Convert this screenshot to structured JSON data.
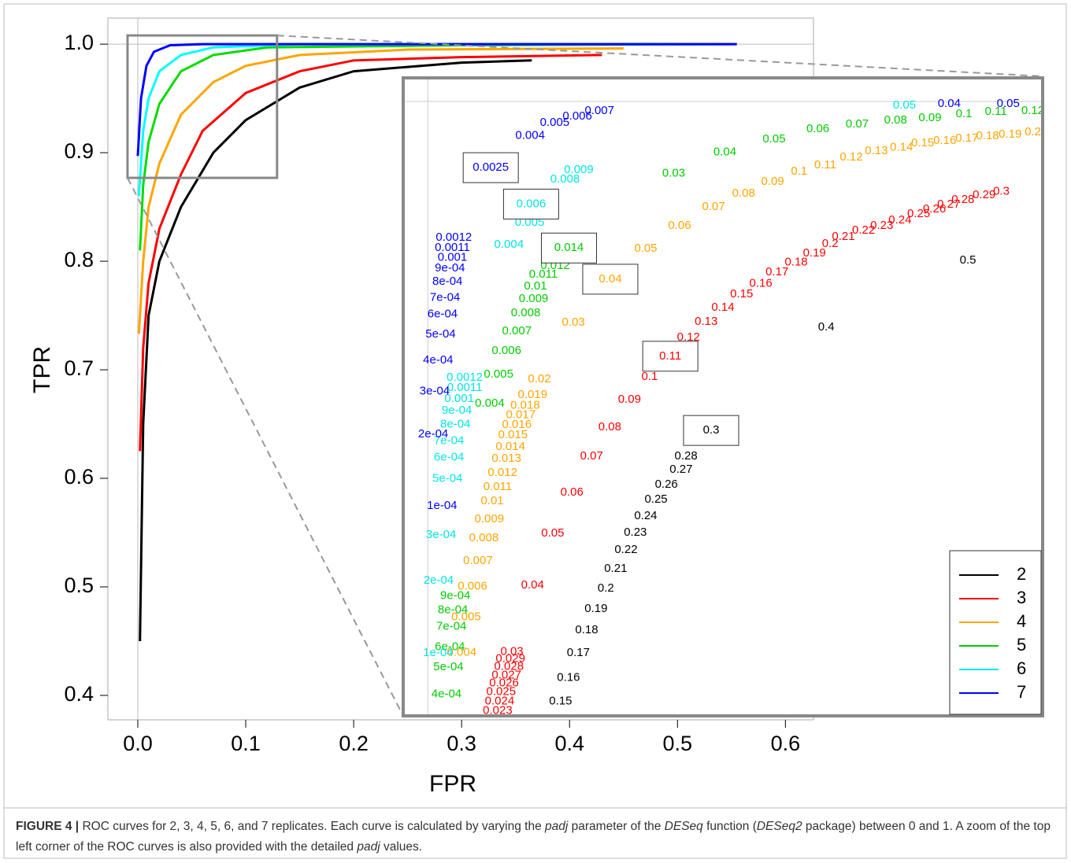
{
  "chart_data": [
    {
      "type": "line",
      "xlabel": "FPR",
      "ylabel": "TPR",
      "xlim": [
        -0.0277,
        0.626
      ],
      "ylim": [
        0.3775,
        1.024
      ],
      "xticks": [
        {
          "value": 0,
          "label": "0.0"
        },
        0.1,
        0.2,
        0.3,
        0.4,
        0.5,
        0.6
      ],
      "yticks": [
        0.4,
        0.5,
        0.6,
        0.7,
        0.8,
        0.9,
        {
          "value": 1,
          "label": "1.0"
        }
      ],
      "reference_lines": {
        "x": 0,
        "y": 1
      },
      "zoom": {
        "xlim": [
          -0.0095,
          0.129
        ],
        "ylim": [
          0.8768,
          1.008
        ]
      },
      "series": [
        {
          "name": "2",
          "color": "#000000",
          "x": [
            0.002,
            0.005,
            0.01,
            0.02,
            0.04,
            0.07,
            0.1,
            0.15,
            0.2,
            0.3,
            0.365
          ],
          "y": [
            0.45,
            0.65,
            0.75,
            0.8,
            0.85,
            0.9,
            0.93,
            0.96,
            0.975,
            0.983,
            0.985
          ]
        },
        {
          "name": "3",
          "color": "#ff0000",
          "x": [
            0.002,
            0.005,
            0.01,
            0.02,
            0.04,
            0.06,
            0.1,
            0.15,
            0.2,
            0.3,
            0.43
          ],
          "y": [
            0.625,
            0.72,
            0.78,
            0.83,
            0.88,
            0.92,
            0.955,
            0.975,
            0.985,
            0.988,
            0.99
          ]
        },
        {
          "name": "4",
          "color": "#ffa500",
          "x": [
            0.001,
            0.005,
            0.01,
            0.02,
            0.04,
            0.07,
            0.1,
            0.15,
            0.25,
            0.45
          ],
          "y": [
            0.733,
            0.8,
            0.85,
            0.89,
            0.935,
            0.965,
            0.98,
            0.99,
            0.995,
            0.996
          ]
        },
        {
          "name": "5",
          "color": "#00dd00",
          "x": [
            0.002,
            0.005,
            0.01,
            0.02,
            0.04,
            0.07,
            0.12,
            0.3,
            0.55
          ],
          "y": [
            0.81,
            0.87,
            0.91,
            0.945,
            0.975,
            0.99,
            0.997,
            0.999,
            1.0
          ]
        },
        {
          "name": "6",
          "color": "#00ffff",
          "x": [
            0.001,
            0.005,
            0.01,
            0.02,
            0.04,
            0.07,
            0.15,
            0.5
          ],
          "y": [
            0.86,
            0.92,
            0.95,
            0.975,
            0.99,
            0.997,
            1.0,
            1.0
          ]
        },
        {
          "name": "7",
          "color": "#0000ff",
          "x": [
            0.0,
            0.003,
            0.008,
            0.015,
            0.03,
            0.06,
            0.555
          ],
          "y": [
            0.897,
            0.95,
            0.98,
            0.993,
            0.999,
            1.0,
            1.0
          ]
        }
      ]
    },
    {
      "type": "text-scatter",
      "xlim": [
        -0.005,
        0.125
      ],
      "ylim": [
        0.87,
        1.005
      ],
      "reference_lines": {
        "x": 0,
        "y": 1
      },
      "legend": "bottom-right",
      "series": [
        {
          "name": "2",
          "color": "#000000",
          "labels": [
            "0.5",
            "0.4",
            "0.3",
            "0.28",
            "0.27",
            "0.26",
            "0.25",
            "0.24",
            "0.23",
            "0.22",
            "0.21",
            "0.2",
            "0.19",
            "0.18",
            "0.17",
            "0.16",
            "0.15"
          ],
          "x": [
            0.1098,
            0.081,
            0.0576,
            0.0525,
            0.0515,
            0.0485,
            0.0464,
            0.0443,
            0.0422,
            0.0403,
            0.0382,
            0.0362,
            0.0342,
            0.0323,
            0.0306,
            0.0286,
            0.027
          ],
          "y": [
            0.9664,
            0.9522,
            0.9304,
            0.9249,
            0.9221,
            0.9189,
            0.9158,
            0.9123,
            0.9088,
            0.9051,
            0.9011,
            0.897,
            0.8926,
            0.8881,
            0.8833,
            0.8781,
            0.8731
          ],
          "boxed": [
            2
          ]
        },
        {
          "name": "3",
          "color": "#ff0000",
          "labels": [
            "0.3",
            "0.29",
            "0.28",
            "0.27",
            "0.26",
            "0.25",
            "0.24",
            "0.23",
            "0.22",
            "0.21",
            "0.2",
            "0.19",
            "0.18",
            "0.17",
            "0.16",
            "0.15",
            "0.14",
            "0.13",
            "0.12",
            "0.11",
            "0.1",
            "0.09",
            "0.08",
            "0.07",
            "0.06",
            "0.05",
            "0.04",
            "0.03",
            "0.029",
            "0.028",
            "0.027",
            "0.026",
            "0.025",
            "0.024",
            "0.023"
          ],
          "x": [
            0.1166,
            0.1131,
            0.1088,
            0.1059,
            0.103,
            0.0998,
            0.096,
            0.0923,
            0.0886,
            0.0845,
            0.0818,
            0.0786,
            0.0749,
            0.071,
            0.0677,
            0.0638,
            0.06,
            0.0566,
            0.053,
            0.0493,
            0.0451,
            0.041,
            0.037,
            0.0333,
            0.0293,
            0.0254,
            0.0213,
            0.0171,
            0.0168,
            0.0165,
            0.016,
            0.0155,
            0.0149,
            0.0146,
            0.0142
          ],
          "y": [
            0.9809,
            0.9802,
            0.9792,
            0.9782,
            0.9772,
            0.9762,
            0.9749,
            0.9737,
            0.9727,
            0.9714,
            0.9699,
            0.9679,
            0.966,
            0.9639,
            0.9615,
            0.9592,
            0.9564,
            0.9534,
            0.9501,
            0.9461,
            0.9417,
            0.9369,
            0.9311,
            0.9249,
            0.9173,
            0.9086,
            0.8976,
            0.8836,
            0.8821,
            0.8804,
            0.8786,
            0.8769,
            0.8751,
            0.8731,
            0.8711
          ],
          "boxed": [
            19
          ]
        },
        {
          "name": "4",
          "color": "#ffa500",
          "labels": [
            "0.2",
            "0.19",
            "0.18",
            "0.17",
            "0.16",
            "0.15",
            "0.14",
            "0.13",
            "0.12",
            "0.11",
            "0.1",
            "0.09",
            "0.08",
            "0.07",
            "0.06",
            "0.05",
            "0.04",
            "0.03",
            "0.02",
            "0.019",
            "0.018",
            "0.017",
            "0.016",
            "0.015",
            "0.014",
            "0.013",
            "0.012",
            "0.011",
            "0.01",
            "0.009",
            "0.008",
            "0.007",
            "0.006",
            "0.005",
            "0.004"
          ],
          "x": [
            0.123,
            0.1184,
            0.1138,
            0.1096,
            0.1051,
            0.1006,
            0.0963,
            0.0912,
            0.0861,
            0.0808,
            0.0755,
            0.0701,
            0.0642,
            0.0581,
            0.0512,
            0.0443,
            0.0371,
            0.0296,
            0.0227,
            0.0213,
            0.0198,
            0.0189,
            0.0181,
            0.0173,
            0.0168,
            0.016,
            0.0152,
            0.0142,
            0.0131,
            0.0125,
            0.0114,
            0.0102,
            0.0091,
            0.0078,
            0.0069
          ],
          "y": [
            0.9935,
            0.993,
            0.9927,
            0.9922,
            0.9917,
            0.9912,
            0.9903,
            0.9895,
            0.9882,
            0.9865,
            0.9852,
            0.983,
            0.9805,
            0.9777,
            0.9737,
            0.9689,
            0.9624,
            0.9532,
            0.9412,
            0.9379,
            0.9357,
            0.9337,
            0.9316,
            0.9294,
            0.9269,
            0.9244,
            0.9214,
            0.9184,
            0.9154,
            0.9116,
            0.9076,
            0.9028,
            0.8974,
            0.8909,
            0.8834
          ],
          "boxed": [
            16
          ]
        },
        {
          "name": "5",
          "color": "#00cc00",
          "labels": [
            "0.12",
            "0.11",
            "0.1",
            "0.09",
            "0.08",
            "0.07",
            "0.06",
            "0.05",
            "0.04",
            "0.03",
            "0.014",
            "0.012",
            "0.011",
            "0.01",
            "0.009",
            "0.008",
            "0.007",
            "0.006",
            "0.005",
            "0.004",
            "9e-04",
            "8e-04",
            "7e-04",
            "6e-04",
            "5e-04",
            "4e-04"
          ],
          "x": [
            0.123,
            0.1155,
            0.109,
            0.1021,
            0.0951,
            0.0873,
            0.0793,
            0.0704,
            0.0604,
            0.05,
            0.0287,
            0.0259,
            0.0235,
            0.0219,
            0.0215,
            0.0199,
            0.0181,
            0.016,
            0.0144,
            0.0126,
            0.0056,
            0.0051,
            0.0048,
            0.0045,
            0.0042,
            0.0038
          ],
          "y": [
            0.998,
            0.9978,
            0.9973,
            0.9965,
            0.996,
            0.9952,
            0.9942,
            0.992,
            0.9893,
            0.9848,
            0.969,
            0.9652,
            0.9634,
            0.9609,
            0.9582,
            0.9552,
            0.9514,
            0.9472,
            0.9422,
            0.9361,
            0.8954,
            0.8924,
            0.8889,
            0.8846,
            0.8803,
            0.8746
          ],
          "boxed": [
            10
          ]
        },
        {
          "name": "6",
          "color": "#00e5e5",
          "labels": [
            "0.05",
            "0.009",
            "0.008",
            "0.006",
            "0.005",
            "0.004",
            "0.0012",
            "0.0011",
            "0.001",
            "9e-04",
            "8e-04",
            "7e-04",
            "6e-04",
            "5e-04",
            "3e-04",
            "2e-04",
            "1e-04"
          ],
          "x": [
            0.0969,
            0.0307,
            0.0279,
            0.021,
            0.0207,
            0.0165,
            0.0075,
            0.0075,
            0.0064,
            0.0059,
            0.0056,
            0.0043,
            0.0043,
            0.004,
            0.0027,
            0.0022,
            0.0021
          ],
          "y": [
            0.9992,
            0.9855,
            0.9835,
            0.9783,
            0.9744,
            0.9697,
            0.9416,
            0.9394,
            0.9371,
            0.9346,
            0.9317,
            0.9282,
            0.9247,
            0.9202,
            0.9083,
            0.8986,
            0.8833
          ],
          "boxed": [
            3
          ]
        },
        {
          "name": "7",
          "color": "#0000ff",
          "labels": [
            "0.05",
            "0.04",
            "0.007",
            "0.006",
            "0.005",
            "0.004",
            "0.0025",
            "0.0012",
            "0.0011",
            "0.001",
            "9e-04",
            "8e-04",
            "7e-04",
            "6e-04",
            "5e-04",
            "4e-04",
            "3e-04",
            "2e-04",
            "1e-04"
          ],
          "x": [
            0.118,
            0.106,
            0.0349,
            0.0304,
            0.0258,
            0.0208,
            0.0128,
            0.0053,
            0.005,
            0.005,
            0.0045,
            0.004,
            0.0035,
            0.003,
            0.0026,
            0.0021,
            0.0014,
            0.0011,
            0.0029
          ],
          "y": [
            0.9995,
            0.9995,
            0.998,
            0.9968,
            0.9955,
            0.9928,
            0.986,
            0.9712,
            0.969,
            0.967,
            0.9647,
            0.9619,
            0.9585,
            0.955,
            0.9507,
            0.9452,
            0.9387,
            0.9296,
            0.9144
          ],
          "boxed": [
            6
          ]
        }
      ]
    }
  ],
  "caption": {
    "label": "FIGURE 4 |",
    "parts": [
      {
        "text": " ROC curves for 2, 3, 4, 5, 6, and 7 replicates. Each curve is calculated by varying the ",
        "italic": false
      },
      {
        "text": "padj",
        "italic": true
      },
      {
        "text": " parameter of the ",
        "italic": false
      },
      {
        "text": "DESeq",
        "italic": true
      },
      {
        "text": " function (",
        "italic": false
      },
      {
        "text": "DESeq2",
        "italic": true
      },
      {
        "text": " package) between 0 and 1. A zoom of the top left corner of the ROC curves is also provided with the detailed ",
        "italic": false
      },
      {
        "text": "padj",
        "italic": true
      },
      {
        "text": " values.",
        "italic": false
      }
    ]
  }
}
